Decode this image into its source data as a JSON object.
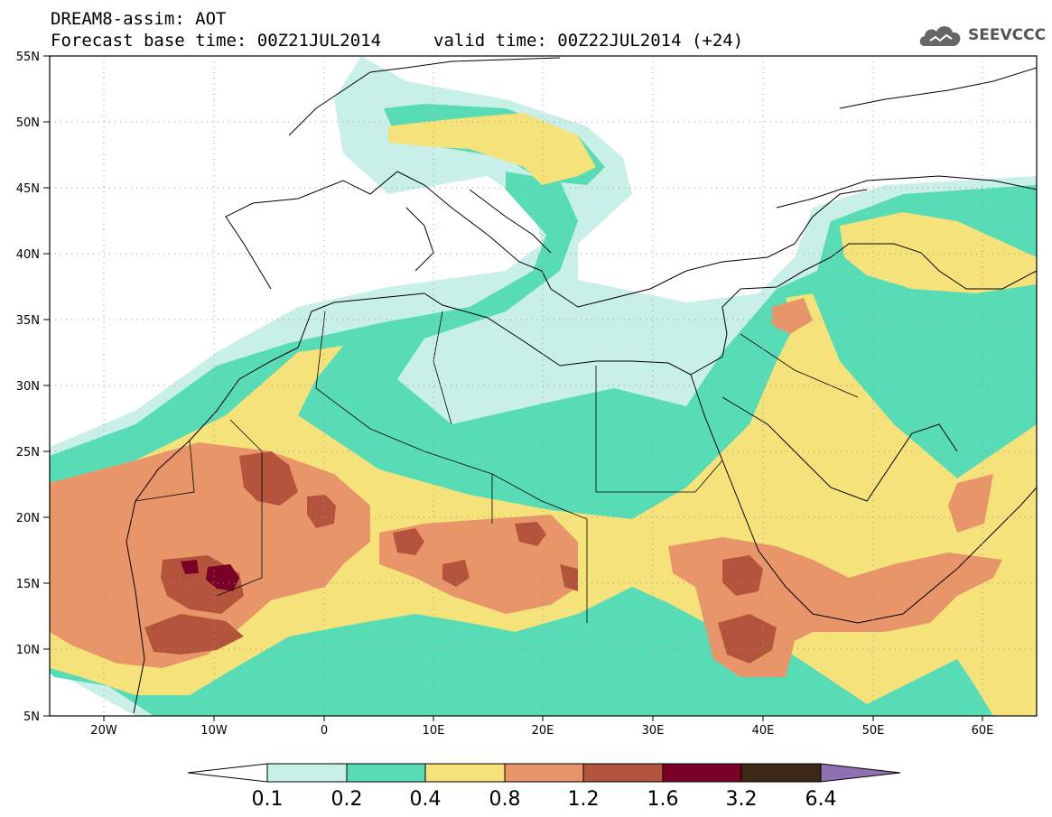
{
  "header": {
    "title": "DREAM8-assim: AOT",
    "base_time": "Forecast base time: 00Z21JUL2014",
    "valid_time": "valid time: 00Z22JUL2014 (+24)"
  },
  "logo": {
    "text": "SEEVCCC",
    "icon": "cloud-icon"
  },
  "axes": {
    "lat_labels": [
      "55N",
      "50N",
      "45N",
      "40N",
      "35N",
      "30N",
      "25N",
      "20N",
      "15N",
      "10N",
      "5N"
    ],
    "lon_labels": [
      "20W",
      "10W",
      "0",
      "10E",
      "20E",
      "30E",
      "40E",
      "50E",
      "60E"
    ],
    "lat_range": [
      5,
      55
    ],
    "lon_range": [
      -25,
      65
    ]
  },
  "colorbar": {
    "levels": [
      "0.1",
      "0.2",
      "0.4",
      "0.8",
      "1.2",
      "1.6",
      "3.2",
      "6.4"
    ],
    "colors": [
      "#ffffff",
      "#c8f0e8",
      "#58dcb6",
      "#f5e27a",
      "#e8956a",
      "#b4543c",
      "#7a0026",
      "#3c2814",
      "#9070b0"
    ]
  }
}
